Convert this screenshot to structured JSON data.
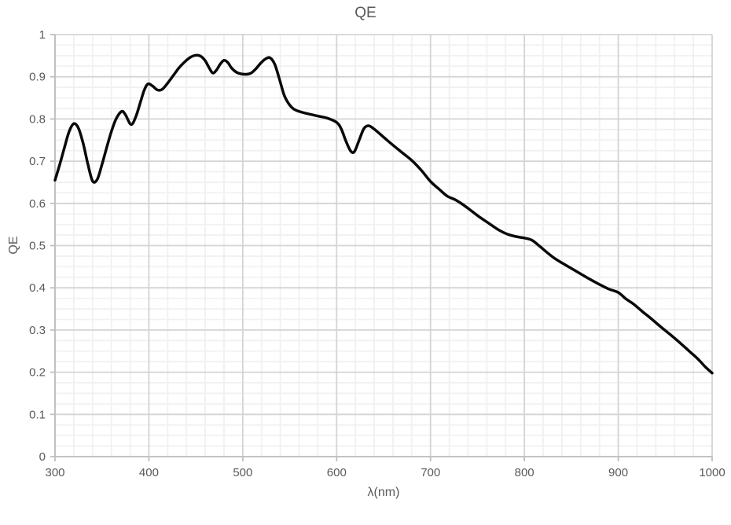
{
  "page": {
    "background": "#ffffff"
  },
  "chart_data": {
    "type": "line",
    "title": "QE",
    "xlabel": "λ(nm)",
    "ylabel": "QE",
    "xlim": [
      300,
      1000
    ],
    "ylim": [
      0,
      1
    ],
    "x_major_ticks": [
      300,
      400,
      500,
      600,
      700,
      800,
      900,
      1000
    ],
    "x_tick_labels": [
      "300",
      "400",
      "500",
      "600",
      "700",
      "800",
      "900",
      "1000"
    ],
    "y_major_ticks": [
      0,
      0.1,
      0.2,
      0.3,
      0.4,
      0.5,
      0.6,
      0.7,
      0.8,
      0.9,
      1
    ],
    "y_tick_labels": [
      "0",
      "0.1",
      "0.2",
      "0.3",
      "0.4",
      "0.5",
      "0.6",
      "0.7",
      "0.8",
      "0.9",
      "1"
    ],
    "x_minor_step": 20,
    "y_minor_step": 0.025,
    "grid": "major+minor",
    "legend": "none",
    "colors": {
      "text": "#595959",
      "grid_major": "#d4d4d4",
      "grid_minor": "#f1f1f1",
      "axis_line": "#bfbfbf",
      "line": "#0a0a0a"
    },
    "series": [
      {
        "name": "QE",
        "color": "#0a0a0a",
        "width": 3.5,
        "smooth": true,
        "points": [
          [
            300,
            0.655
          ],
          [
            305,
            0.692
          ],
          [
            310,
            0.732
          ],
          [
            315,
            0.77
          ],
          [
            320,
            0.789
          ],
          [
            325,
            0.778
          ],
          [
            330,
            0.742
          ],
          [
            335,
            0.693
          ],
          [
            340,
            0.653
          ],
          [
            345,
            0.657
          ],
          [
            350,
            0.692
          ],
          [
            355,
            0.732
          ],
          [
            360,
            0.77
          ],
          [
            365,
            0.8
          ],
          [
            371,
            0.818
          ],
          [
            375,
            0.81
          ],
          [
            381,
            0.787
          ],
          [
            386,
            0.805
          ],
          [
            391,
            0.84
          ],
          [
            395,
            0.868
          ],
          [
            399,
            0.883
          ],
          [
            404,
            0.878
          ],
          [
            409,
            0.869
          ],
          [
            414,
            0.87
          ],
          [
            420,
            0.885
          ],
          [
            426,
            0.903
          ],
          [
            432,
            0.921
          ],
          [
            438,
            0.935
          ],
          [
            444,
            0.946
          ],
          [
            450,
            0.951
          ],
          [
            455,
            0.949
          ],
          [
            460,
            0.938
          ],
          [
            464,
            0.922
          ],
          [
            468,
            0.909
          ],
          [
            472,
            0.916
          ],
          [
            476,
            0.93
          ],
          [
            480,
            0.939
          ],
          [
            484,
            0.934
          ],
          [
            488,
            0.921
          ],
          [
            493,
            0.911
          ],
          [
            498,
            0.907
          ],
          [
            504,
            0.906
          ],
          [
            509,
            0.909
          ],
          [
            514,
            0.919
          ],
          [
            519,
            0.932
          ],
          [
            524,
            0.942
          ],
          [
            529,
            0.945
          ],
          [
            534,
            0.93
          ],
          [
            539,
            0.895
          ],
          [
            544,
            0.857
          ],
          [
            549,
            0.836
          ],
          [
            554,
            0.824
          ],
          [
            560,
            0.818
          ],
          [
            570,
            0.812
          ],
          [
            580,
            0.807
          ],
          [
            590,
            0.802
          ],
          [
            600,
            0.792
          ],
          [
            605,
            0.776
          ],
          [
            610,
            0.747
          ],
          [
            615,
            0.724
          ],
          [
            619,
            0.723
          ],
          [
            624,
            0.75
          ],
          [
            629,
            0.777
          ],
          [
            634,
            0.784
          ],
          [
            640,
            0.776
          ],
          [
            650,
            0.757
          ],
          [
            660,
            0.738
          ],
          [
            670,
            0.72
          ],
          [
            680,
            0.702
          ],
          [
            690,
            0.679
          ],
          [
            700,
            0.652
          ],
          [
            710,
            0.632
          ],
          [
            718,
            0.617
          ],
          [
            726,
            0.609
          ],
          [
            734,
            0.598
          ],
          [
            742,
            0.585
          ],
          [
            752,
            0.568
          ],
          [
            762,
            0.553
          ],
          [
            772,
            0.538
          ],
          [
            782,
            0.527
          ],
          [
            792,
            0.521
          ],
          [
            800,
            0.518
          ],
          [
            808,
            0.513
          ],
          [
            816,
            0.499
          ],
          [
            824,
            0.484
          ],
          [
            832,
            0.47
          ],
          [
            840,
            0.459
          ],
          [
            850,
            0.446
          ],
          [
            860,
            0.433
          ],
          [
            870,
            0.42
          ],
          [
            880,
            0.408
          ],
          [
            890,
            0.397
          ],
          [
            900,
            0.389
          ],
          [
            908,
            0.374
          ],
          [
            916,
            0.362
          ],
          [
            925,
            0.345
          ],
          [
            935,
            0.327
          ],
          [
            945,
            0.308
          ],
          [
            955,
            0.29
          ],
          [
            965,
            0.271
          ],
          [
            975,
            0.251
          ],
          [
            985,
            0.231
          ],
          [
            993,
            0.212
          ],
          [
            1000,
            0.198
          ]
        ]
      }
    ]
  }
}
